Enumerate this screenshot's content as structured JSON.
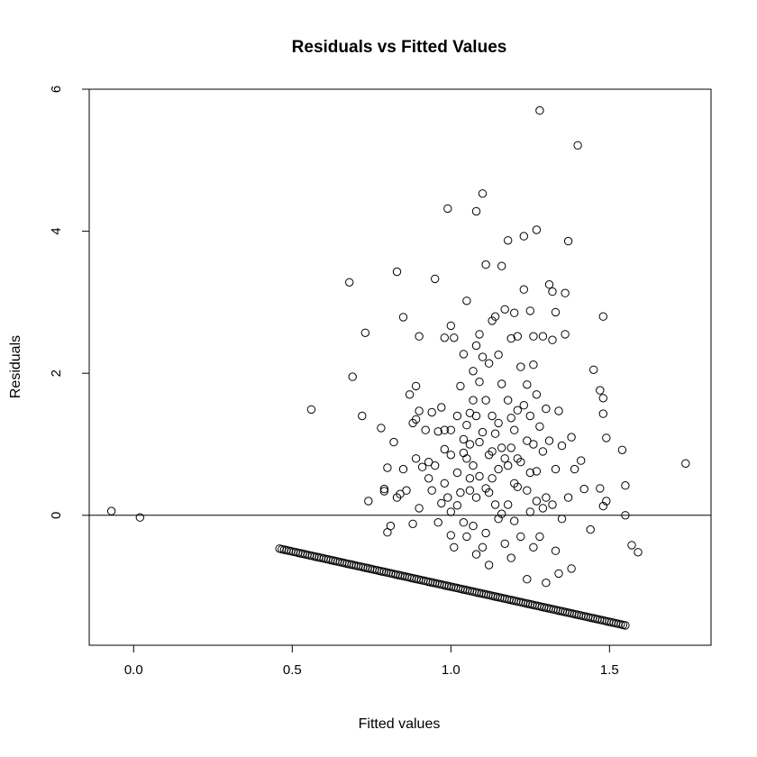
{
  "chart_data": {
    "type": "scatter",
    "title": "Residuals vs Fitted Values",
    "xlabel": "Fitted values",
    "ylabel": "Residuals",
    "xlim": [
      -0.14,
      1.82
    ],
    "ylim": [
      -1.83,
      6.0
    ],
    "xticks": [
      0.0,
      0.5,
      1.0,
      1.5
    ],
    "xtick_labels": [
      "0.0",
      "0.5",
      "1.0",
      "1.5"
    ],
    "yticks": [
      0,
      2,
      4,
      6
    ],
    "ytick_labels": [
      "0",
      "2",
      "4",
      "6"
    ],
    "reference_line_y": 0,
    "grid": false,
    "legend": false,
    "marker": "open-circle",
    "marker_color": "#000000",
    "lower_boundary": {
      "x_start": 0.46,
      "x_end": 1.55,
      "y_start": -0.47,
      "y_end": -1.55,
      "count": 150
    },
    "series": [
      {
        "points": [
          [
            -0.07,
            0.06
          ],
          [
            0.02,
            -0.03
          ],
          [
            0.56,
            1.49
          ],
          [
            0.68,
            3.28
          ],
          [
            0.69,
            1.95
          ],
          [
            0.72,
            1.4
          ],
          [
            0.73,
            2.57
          ],
          [
            0.74,
            0.2
          ],
          [
            0.78,
            1.23
          ],
          [
            0.79,
            0.37
          ],
          [
            0.79,
            0.34
          ],
          [
            0.8,
            0.67
          ],
          [
            0.8,
            -0.24
          ],
          [
            0.81,
            -0.15
          ],
          [
            0.82,
            1.03
          ],
          [
            0.83,
            0.25
          ],
          [
            0.83,
            3.43
          ],
          [
            0.84,
            0.3
          ],
          [
            0.85,
            2.79
          ],
          [
            0.85,
            0.65
          ],
          [
            0.86,
            0.35
          ],
          [
            0.87,
            1.7
          ],
          [
            0.88,
            1.3
          ],
          [
            0.88,
            -0.12
          ],
          [
            0.89,
            1.82
          ],
          [
            0.89,
            1.35
          ],
          [
            0.89,
            0.8
          ],
          [
            0.9,
            2.52
          ],
          [
            0.9,
            1.47
          ],
          [
            0.9,
            0.1
          ],
          [
            0.91,
            0.68
          ],
          [
            0.92,
            1.2
          ],
          [
            0.93,
            0.75
          ],
          [
            0.94,
            1.45
          ],
          [
            0.94,
            0.35
          ],
          [
            0.95,
            3.33
          ],
          [
            0.95,
            0.7
          ],
          [
            0.96,
            1.18
          ],
          [
            0.96,
            -0.1
          ],
          [
            0.97,
            0.17
          ],
          [
            0.97,
            1.52
          ],
          [
            0.98,
            0.93
          ],
          [
            0.98,
            0.45
          ],
          [
            0.98,
            2.5
          ],
          [
            0.99,
            4.32
          ],
          [
            0.99,
            0.25
          ],
          [
            1.0,
            2.67
          ],
          [
            1.0,
            1.2
          ],
          [
            1.0,
            0.85
          ],
          [
            1.0,
            0.05
          ],
          [
            1.01,
            2.5
          ],
          [
            1.01,
            -0.45
          ],
          [
            1.02,
            1.4
          ],
          [
            1.02,
            0.6
          ],
          [
            1.03,
            1.82
          ],
          [
            1.03,
            0.32
          ],
          [
            1.04,
            2.27
          ],
          [
            1.04,
            1.07
          ],
          [
            1.04,
            -0.1
          ],
          [
            1.05,
            3.02
          ],
          [
            1.05,
            1.27
          ],
          [
            1.05,
            0.8
          ],
          [
            1.05,
            -0.3
          ],
          [
            1.06,
            1.44
          ],
          [
            1.06,
            0.35
          ],
          [
            1.06,
            1.0
          ],
          [
            1.07,
            2.03
          ],
          [
            1.07,
            0.7
          ],
          [
            1.07,
            -0.15
          ],
          [
            1.08,
            4.28
          ],
          [
            1.08,
            2.39
          ],
          [
            1.08,
            1.4
          ],
          [
            1.08,
            0.25
          ],
          [
            1.08,
            -0.55
          ],
          [
            1.09,
            2.55
          ],
          [
            1.09,
            1.03
          ],
          [
            1.09,
            0.55
          ],
          [
            1.1,
            4.53
          ],
          [
            1.1,
            2.23
          ],
          [
            1.1,
            1.17
          ],
          [
            1.1,
            -0.45
          ],
          [
            1.11,
            3.53
          ],
          [
            1.11,
            1.62
          ],
          [
            1.11,
            0.38
          ],
          [
            1.12,
            2.14
          ],
          [
            1.12,
            0.85
          ],
          [
            1.12,
            -0.7
          ],
          [
            1.13,
            2.74
          ],
          [
            1.13,
            1.4
          ],
          [
            1.13,
            0.9
          ],
          [
            1.14,
            2.8
          ],
          [
            1.14,
            1.15
          ],
          [
            1.14,
            0.15
          ],
          [
            1.15,
            2.26
          ],
          [
            1.15,
            0.65
          ],
          [
            1.15,
            -0.05
          ],
          [
            1.16,
            3.51
          ],
          [
            1.16,
            1.85
          ],
          [
            1.16,
            0.95
          ],
          [
            1.17,
            2.9
          ],
          [
            1.17,
            0.8
          ],
          [
            1.17,
            -0.4
          ],
          [
            1.18,
            3.87
          ],
          [
            1.18,
            1.62
          ],
          [
            1.18,
            0.7
          ],
          [
            1.19,
            2.49
          ],
          [
            1.19,
            1.37
          ],
          [
            1.19,
            -0.6
          ],
          [
            1.2,
            2.85
          ],
          [
            1.2,
            1.2
          ],
          [
            1.2,
            0.45
          ],
          [
            1.21,
            2.52
          ],
          [
            1.21,
            1.48
          ],
          [
            1.21,
            0.8
          ],
          [
            1.22,
            2.09
          ],
          [
            1.22,
            0.75
          ],
          [
            1.22,
            -0.3
          ],
          [
            1.23,
            3.93
          ],
          [
            1.23,
            3.18
          ],
          [
            1.23,
            1.55
          ],
          [
            1.24,
            1.05
          ],
          [
            1.24,
            0.35
          ],
          [
            1.24,
            -0.9
          ],
          [
            1.25,
            2.88
          ],
          [
            1.25,
            0.6
          ],
          [
            1.25,
            0.05
          ],
          [
            1.26,
            2.52
          ],
          [
            1.26,
            2.12
          ],
          [
            1.26,
            1.0
          ],
          [
            1.26,
            -0.45
          ],
          [
            1.27,
            4.02
          ],
          [
            1.27,
            1.7
          ],
          [
            1.27,
            0.2
          ],
          [
            1.28,
            5.7
          ],
          [
            1.28,
            1.25
          ],
          [
            1.28,
            -0.3
          ],
          [
            1.29,
            2.52
          ],
          [
            1.29,
            0.9
          ],
          [
            1.3,
            1.5
          ],
          [
            1.3,
            0.25
          ],
          [
            1.3,
            -0.95
          ],
          [
            1.31,
            3.25
          ],
          [
            1.31,
            1.05
          ],
          [
            1.32,
            3.15
          ],
          [
            1.32,
            2.47
          ],
          [
            1.32,
            0.15
          ],
          [
            1.33,
            2.86
          ],
          [
            1.33,
            0.65
          ],
          [
            1.33,
            -0.5
          ],
          [
            1.34,
            1.47
          ],
          [
            1.34,
            -0.82
          ],
          [
            1.35,
            0.98
          ],
          [
            1.35,
            -0.05
          ],
          [
            1.36,
            3.13
          ],
          [
            1.36,
            2.55
          ],
          [
            1.37,
            3.86
          ],
          [
            1.37,
            0.25
          ],
          [
            1.38,
            1.1
          ],
          [
            1.38,
            -0.75
          ],
          [
            1.39,
            0.65
          ],
          [
            1.4,
            5.21
          ],
          [
            1.41,
            0.77
          ],
          [
            1.42,
            0.37
          ],
          [
            1.44,
            -0.2
          ],
          [
            1.45,
            2.05
          ],
          [
            1.47,
            1.76
          ],
          [
            1.47,
            0.38
          ],
          [
            1.48,
            2.8
          ],
          [
            1.48,
            1.65
          ],
          [
            1.48,
            1.43
          ],
          [
            1.48,
            0.13
          ],
          [
            1.49,
            1.09
          ],
          [
            1.49,
            0.2
          ],
          [
            1.54,
            0.92
          ],
          [
            1.55,
            0.0
          ],
          [
            1.55,
            0.42
          ],
          [
            1.57,
            -0.42
          ],
          [
            1.59,
            -0.52
          ],
          [
            1.74,
            0.73
          ],
          [
            0.98,
            1.2
          ],
          [
            1.02,
            0.14
          ],
          [
            1.06,
            0.52
          ],
          [
            1.09,
            1.88
          ],
          [
            1.12,
            0.32
          ],
          [
            1.15,
            1.3
          ],
          [
            1.18,
            0.15
          ],
          [
            1.21,
            0.4
          ],
          [
            1.24,
            1.84
          ],
          [
            1.27,
            0.62
          ],
          [
            1.16,
            0.02
          ],
          [
            1.04,
            0.88
          ],
          [
            1.0,
            -0.28
          ],
          [
            1.11,
            -0.25
          ],
          [
            1.2,
            -0.08
          ],
          [
            1.29,
            0.1
          ],
          [
            0.93,
            0.52
          ],
          [
            1.07,
            1.62
          ],
          [
            1.13,
            0.52
          ],
          [
            1.19,
            0.95
          ],
          [
            1.25,
            1.4
          ]
        ]
      }
    ]
  }
}
